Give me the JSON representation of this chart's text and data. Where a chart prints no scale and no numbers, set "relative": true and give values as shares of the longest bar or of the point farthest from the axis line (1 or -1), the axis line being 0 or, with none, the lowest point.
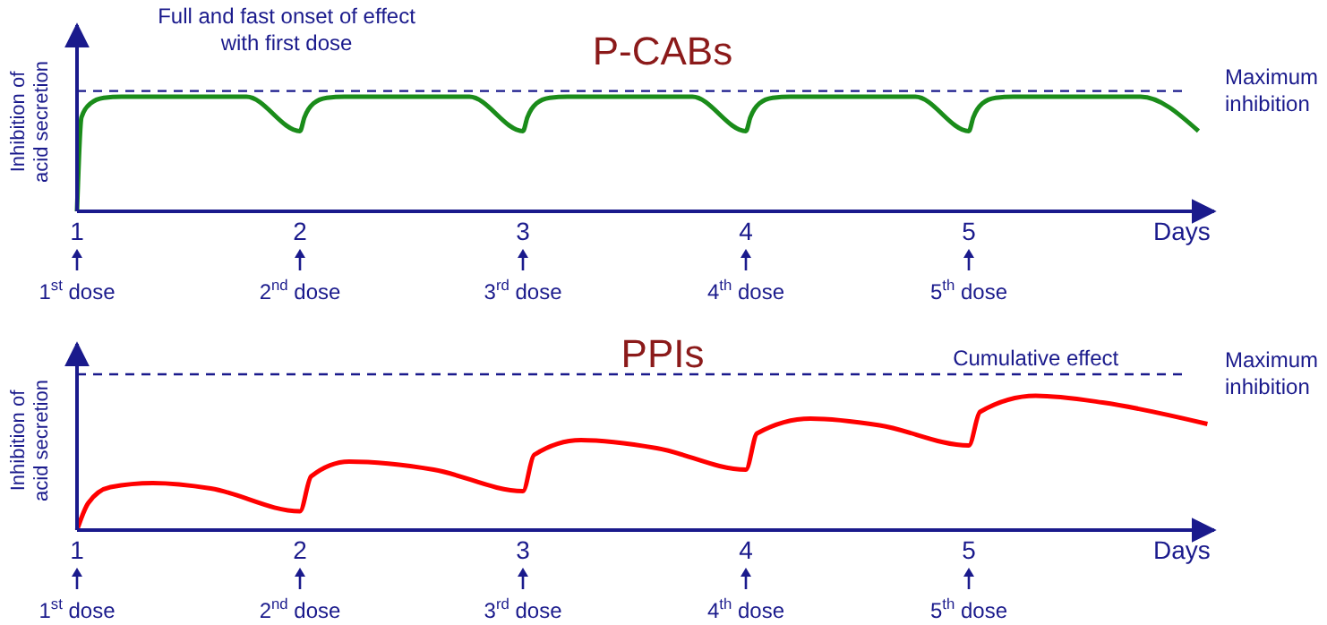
{
  "chart_data": [
    {
      "type": "line",
      "title": "P-CABs",
      "xlabel": "Days",
      "ylabel": "Inhibition of acid secretion",
      "relative": true,
      "xlim": [
        1,
        6.1
      ],
      "xticks": [
        1,
        2,
        3,
        4,
        5
      ],
      "marker": "none",
      "series": [
        {
          "color": "#1a8c1a",
          "x": [
            1,
            1.02,
            1.06,
            1.12,
            1.2,
            1.76,
            2,
            2.02,
            2.06,
            2.12,
            2.2,
            2.76,
            3,
            3.02,
            3.06,
            3.12,
            3.2,
            3.76,
            4,
            4.02,
            4.06,
            4.12,
            4.2,
            4.76,
            5,
            5.02,
            5.06,
            5.12,
            5.2,
            5.77,
            6.03
          ],
          "values": [
            0,
            0.82,
            0.94,
            0.99,
            1,
            1,
            0.7,
            0.82,
            0.94,
            0.99,
            1,
            1,
            0.7,
            0.82,
            0.94,
            0.99,
            1,
            1,
            0.7,
            0.82,
            0.94,
            0.99,
            1,
            1,
            0.7,
            0.82,
            0.94,
            0.99,
            1,
            1,
            0.7
          ]
        }
      ],
      "ref_lines": [
        {
          "axis": "y",
          "value": 1.05,
          "label": "Maximum inhibition",
          "line_style": "dashed",
          "color": "#1a1a8c"
        }
      ],
      "annotations": [
        "Full and fast onset of effect with first dose",
        "1$^{st}$ dose",
        "2$^{nd}$ dose",
        "3$^{rd}$ dose",
        "4$^{th}$ dose",
        "5$^{th}$ dose"
      ]
    },
    {
      "type": "line",
      "title": "PPIs",
      "xlabel": "Days",
      "ylabel": "Inhibition of acid secretion",
      "relative": true,
      "xlim": [
        1,
        6.1
      ],
      "xticks": [
        1,
        2,
        3,
        4,
        5
      ],
      "marker": "none",
      "series": [
        {
          "color": "#ff0000",
          "x": [
            1,
            1.05,
            1.15,
            1.34,
            1.6,
            2,
            2.05,
            2.22,
            2.6,
            3,
            3.05,
            3.26,
            3.6,
            4,
            4.05,
            4.29,
            4.6,
            5,
            5.05,
            5.3,
            5.6,
            6.07
          ],
          "values": [
            0,
            0.2,
            0.32,
            0.35,
            0.31,
            0.14,
            0.4,
            0.51,
            0.45,
            0.29,
            0.56,
            0.67,
            0.61,
            0.45,
            0.72,
            0.83,
            0.78,
            0.63,
            0.88,
            1,
            0.95,
            0.79
          ]
        }
      ],
      "ref_lines": [
        {
          "axis": "y",
          "value": 1.16,
          "label": "Maximum inhibition",
          "line_style": "dashed",
          "color": "#1a1a8c"
        }
      ],
      "annotations": [
        {
          "text": "Cumulative effect",
          "x": 5.3,
          "y": 1.16
        },
        "1$^{st}$ dose",
        "2$^{nd}$ dose",
        "3$^{rd}$ dose",
        "4$^{th}$ dose",
        "5$^{th}$ dose"
      ]
    }
  ]
}
